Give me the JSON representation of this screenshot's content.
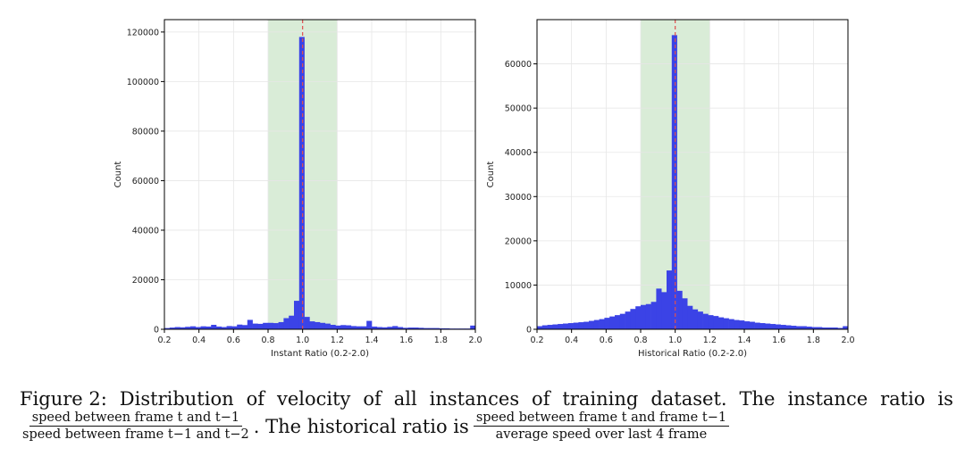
{
  "chart_data": [
    {
      "type": "bar",
      "xlabel": "Instant Ratio (0.2-2.0)",
      "ylabel": "Count",
      "xlim": [
        0.2,
        2.0
      ],
      "ylim": [
        0,
        125000
      ],
      "xticks": [
        "0.2",
        "0.4",
        "0.6",
        "0.8",
        "1.0",
        "1.2",
        "1.4",
        "1.6",
        "1.8",
        "2.0"
      ],
      "yticks": [
        "0",
        "20000",
        "40000",
        "60000",
        "80000",
        "100000",
        "120000"
      ],
      "bin_width": 0.03,
      "x": [
        0.215,
        0.245,
        0.275,
        0.305,
        0.335,
        0.365,
        0.395,
        0.425,
        0.455,
        0.485,
        0.515,
        0.545,
        0.575,
        0.605,
        0.635,
        0.665,
        0.695,
        0.725,
        0.755,
        0.785,
        0.815,
        0.845,
        0.875,
        0.905,
        0.935,
        0.965,
        0.995,
        1.025,
        1.055,
        1.085,
        1.115,
        1.145,
        1.175,
        1.205,
        1.235,
        1.265,
        1.295,
        1.325,
        1.355,
        1.385,
        1.415,
        1.445,
        1.475,
        1.505,
        1.535,
        1.565,
        1.595,
        1.625,
        1.655,
        1.685,
        1.715,
        1.745,
        1.775,
        1.805,
        1.835,
        1.865,
        1.895,
        1.925,
        1.955,
        1.985
      ],
      "values": [
        500,
        700,
        900,
        800,
        1000,
        1200,
        900,
        1200,
        1100,
        1800,
        1100,
        900,
        1300,
        1200,
        1900,
        1700,
        3800,
        2300,
        2200,
        2600,
        2600,
        2500,
        2900,
        4500,
        5500,
        11500,
        118000,
        5000,
        3200,
        2900,
        2600,
        2300,
        1800,
        1500,
        1700,
        1600,
        1300,
        1200,
        1200,
        3400,
        1100,
        900,
        800,
        1000,
        1300,
        900,
        600,
        700,
        700,
        600,
        500,
        500,
        500,
        400,
        400,
        300,
        300,
        300,
        300,
        1500
      ],
      "highlight_band": [
        0.8,
        1.2
      ],
      "reference_line": 1.0,
      "grid": true
    },
    {
      "type": "bar",
      "xlabel": "Historical Ratio (0.2-2.0)",
      "ylabel": "Count",
      "xlim": [
        0.2,
        2.0
      ],
      "ylim": [
        0,
        70000
      ],
      "xticks": [
        "0.2",
        "0.4",
        "0.6",
        "0.8",
        "1.0",
        "1.2",
        "1.4",
        "1.6",
        "1.8",
        "2.0"
      ],
      "yticks": [
        "0",
        "10000",
        "20000",
        "30000",
        "40000",
        "50000",
        "60000"
      ],
      "bin_width": 0.03,
      "x": [
        0.215,
        0.245,
        0.275,
        0.305,
        0.335,
        0.365,
        0.395,
        0.425,
        0.455,
        0.485,
        0.515,
        0.545,
        0.575,
        0.605,
        0.635,
        0.665,
        0.695,
        0.725,
        0.755,
        0.785,
        0.815,
        0.845,
        0.875,
        0.905,
        0.935,
        0.965,
        0.995,
        1.025,
        1.055,
        1.085,
        1.115,
        1.145,
        1.175,
        1.205,
        1.235,
        1.265,
        1.295,
        1.325,
        1.355,
        1.385,
        1.415,
        1.445,
        1.475,
        1.505,
        1.535,
        1.565,
        1.595,
        1.625,
        1.655,
        1.685,
        1.715,
        1.745,
        1.775,
        1.805,
        1.835,
        1.865,
        1.895,
        1.925,
        1.955,
        1.985
      ],
      "values": [
        700,
        900,
        1000,
        1100,
        1200,
        1300,
        1400,
        1500,
        1600,
        1700,
        1900,
        2100,
        2300,
        2600,
        2900,
        3200,
        3500,
        4000,
        4600,
        5200,
        5500,
        5700,
        6200,
        9200,
        8400,
        13300,
        66500,
        8700,
        7000,
        5300,
        4500,
        4000,
        3500,
        3200,
        3000,
        2700,
        2500,
        2300,
        2100,
        2000,
        1800,
        1700,
        1500,
        1400,
        1300,
        1200,
        1100,
        1000,
        900,
        800,
        700,
        700,
        600,
        500,
        500,
        400,
        400,
        400,
        300,
        700
      ],
      "highlight_band": [
        0.8,
        1.2
      ],
      "reference_line": 1.0,
      "grid": true
    }
  ],
  "caption": {
    "line1_words": [
      "Figure 2:",
      "Distribution",
      "of",
      "velocity",
      "of",
      "all",
      "instances",
      "of",
      "training",
      "dataset.",
      "The",
      "instance",
      "ratio",
      "is"
    ],
    "frac1_num": "speed between frame t and t−1",
    "frac1_den": "speed between frame t−1 and t−2",
    "middle": ". The historical ratio is",
    "frac2_num": "speed between frame t and frame t−1",
    "frac2_den": "average speed over last 4 frame"
  },
  "colors": {
    "bar": "#3b43e6",
    "band": "#d9ecd7",
    "refline": "#e05050",
    "grid": "#e6e6e6"
  }
}
